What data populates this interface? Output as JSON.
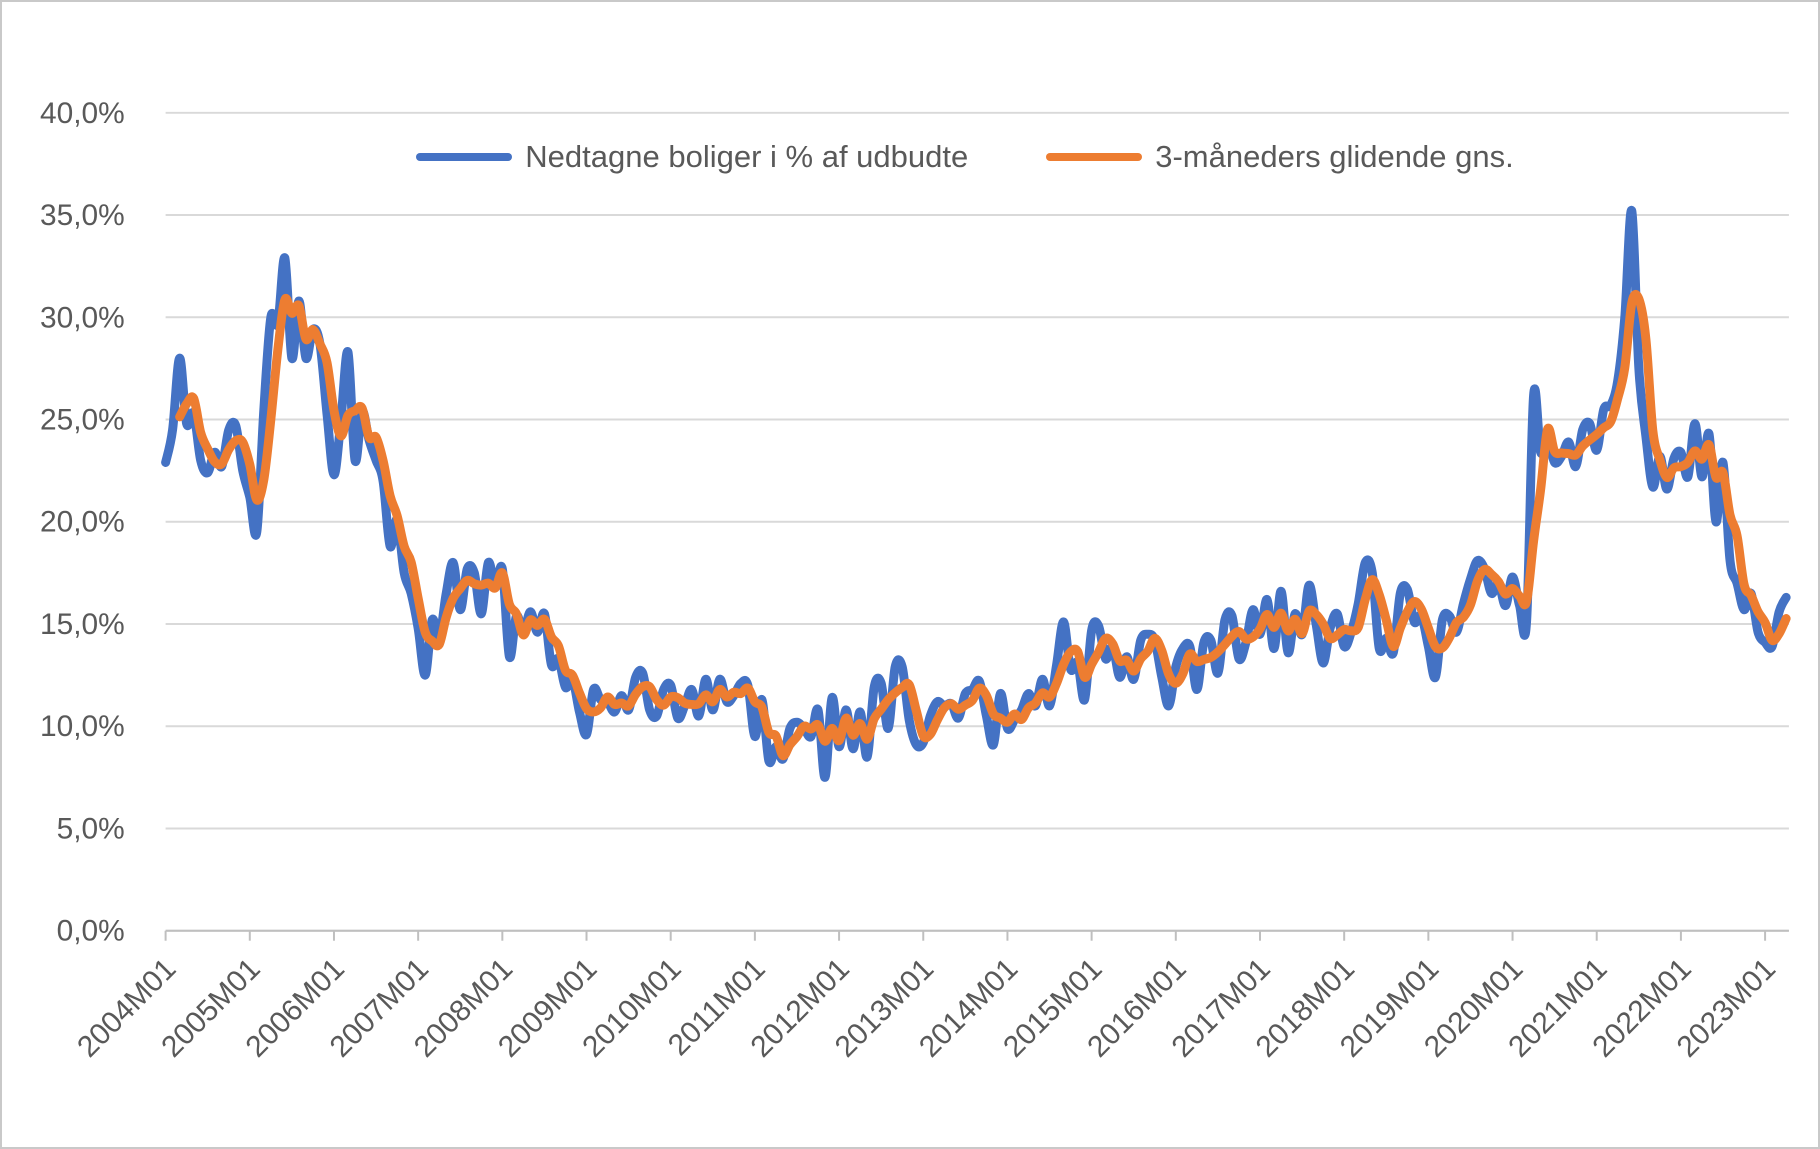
{
  "window": {
    "background": "#ffffff",
    "border_color": "#c9c9c9"
  },
  "axes": {
    "text_color": "#595959",
    "gridline_color": "#d9d9d9",
    "axis_line_color": "#bfbfbf"
  },
  "chart_data": {
    "type": "line",
    "title": "",
    "xlabel": "",
    "ylabel": "",
    "x_start": "2004M01",
    "x_end": "2023M04",
    "x_frequency": "monthly",
    "x_tick_labels": [
      "2004M01",
      "2005M01",
      "2006M01",
      "2007M01",
      "2008M01",
      "2009M01",
      "2010M01",
      "2011M01",
      "2012M01",
      "2013M01",
      "2014M01",
      "2015M01",
      "2016M01",
      "2017M01",
      "2018M01",
      "2019M01",
      "2020M01",
      "2021M01",
      "2022M01",
      "2023M01"
    ],
    "x_tick_label_rotation_deg": 45,
    "y_tick_labels": [
      "0,0%",
      "5,0%",
      "10,0%",
      "15,0%",
      "20,0%",
      "25,0%",
      "30,0%",
      "35,0%",
      "40,0%"
    ],
    "ylim": [
      0,
      40
    ],
    "y_unit": "percent",
    "grid": "horizontal",
    "legend_position": "top-center",
    "series": [
      {
        "name": "Nedtagne boliger i % af udbudte",
        "color": "#4472C4",
        "values": [
          22.9,
          24.5,
          28.0,
          24.8,
          25.3,
          23.0,
          22.4,
          23.4,
          22.7,
          24.5,
          24.7,
          22.5,
          21.2,
          19.5,
          25.5,
          30.0,
          29.7,
          32.9,
          28.0,
          30.8,
          28.0,
          29.4,
          28.7,
          25.3,
          22.3,
          25.0,
          28.3,
          23.0,
          25.4,
          24.0,
          23.0,
          22.0,
          18.8,
          20.1,
          17.5,
          16.5,
          14.8,
          12.5,
          15.2,
          14.3,
          16.5,
          18.0,
          15.7,
          17.7,
          17.5,
          15.5,
          18.0,
          16.8,
          17.7,
          13.4,
          15.4,
          14.6,
          15.6,
          14.6,
          15.5,
          13.0,
          13.3,
          11.9,
          12.3,
          10.7,
          9.6,
          11.8,
          11.3,
          11.2,
          10.7,
          11.5,
          10.8,
          12.4,
          12.6,
          10.8,
          10.5,
          11.8,
          12.0,
          10.4,
          11.0,
          11.8,
          10.5,
          12.3,
          10.8,
          12.3,
          11.2,
          11.5,
          12.1,
          12.0,
          9.5,
          11.3,
          8.3,
          9.0,
          8.4,
          9.9,
          10.2,
          9.9,
          9.5,
          10.8,
          7.5,
          11.4,
          9.0,
          10.8,
          8.9,
          10.7,
          8.5,
          11.9,
          12.1,
          9.9,
          12.9,
          12.9,
          10.3,
          9.1,
          9.2,
          10.5,
          11.2,
          11.0,
          11.1,
          10.4,
          11.6,
          11.8,
          12.2,
          10.5,
          9.1,
          11.6,
          9.9,
          10.3,
          10.8,
          11.6,
          11.0,
          12.3,
          11.0,
          13.0,
          15.1,
          12.8,
          13.1,
          11.3,
          14.7,
          14.9,
          13.3,
          13.9,
          12.4,
          13.4,
          12.3,
          14.2,
          14.5,
          14.2,
          12.4,
          11.0,
          12.9,
          13.8,
          13.9,
          11.8,
          14.1,
          14.2,
          12.6,
          15.2,
          15.4,
          13.3,
          14.1,
          15.7,
          14.5,
          16.2,
          13.8,
          16.6,
          13.6,
          15.5,
          14.5,
          16.9,
          15.0,
          13.1,
          14.8,
          15.5,
          13.9,
          14.6,
          16.0,
          18.0,
          17.5,
          13.8,
          14.3,
          13.6,
          16.5,
          16.7,
          15.1,
          15.4,
          13.9,
          12.4,
          15.2,
          15.4,
          14.6,
          16.0,
          17.2,
          18.1,
          17.7,
          16.5,
          17.0,
          15.9,
          17.3,
          15.9,
          15.1,
          26.2,
          23.4,
          24.0,
          22.9,
          23.2,
          23.9,
          22.7,
          24.5,
          24.8,
          23.5,
          25.5,
          25.7,
          26.9,
          30.0,
          35.2,
          27.5,
          24.2,
          21.7,
          23.2,
          21.6,
          23.1,
          23.4,
          22.2,
          24.8,
          22.2,
          24.3,
          20.0,
          22.9,
          18.1,
          17.0,
          15.7,
          16.5,
          14.6,
          14.1,
          13.9,
          15.6,
          16.3
        ]
      },
      {
        "name": "3-måneders glidende gns.",
        "color": "#ED7D31",
        "derived_from_series": 0,
        "derivation": "trailing 3-month moving average",
        "window": 3
      }
    ]
  }
}
